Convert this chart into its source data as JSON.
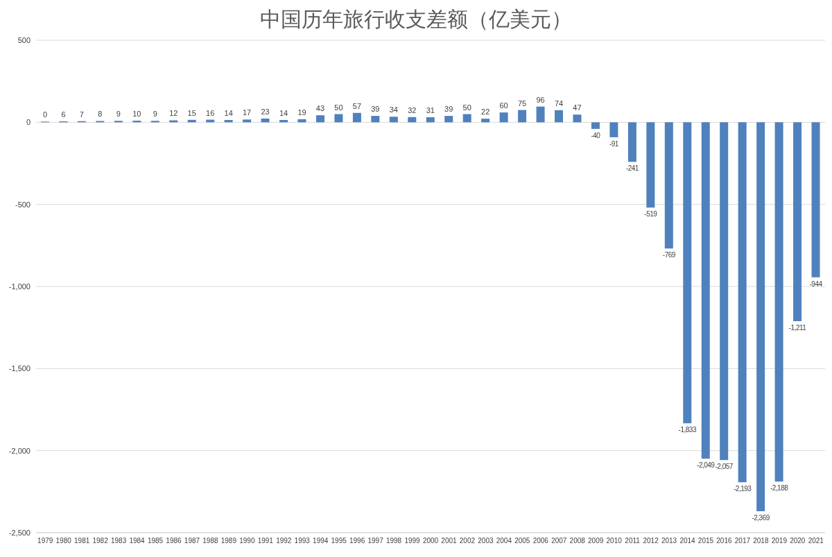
{
  "chart_data": {
    "type": "bar",
    "title": "中国历年旅行收支差额（亿美元）",
    "categories": [
      "1979",
      "1980",
      "1981",
      "1982",
      "1983",
      "1984",
      "1985",
      "1986",
      "1987",
      "1988",
      "1989",
      "1990",
      "1991",
      "1992",
      "1993",
      "1994",
      "1995",
      "1996",
      "1997",
      "1998",
      "1999",
      "2000",
      "2001",
      "2002",
      "2003",
      "2004",
      "2005",
      "2006",
      "2007",
      "2008",
      "2009",
      "2010",
      "2011",
      "2012",
      "2013",
      "2014",
      "2015",
      "2016",
      "2017",
      "2018",
      "2019",
      "2020",
      "2021"
    ],
    "values": [
      0,
      6,
      7,
      8,
      9,
      10,
      9,
      12,
      15,
      16,
      14,
      17,
      23,
      14,
      19,
      43,
      50,
      57,
      39,
      34,
      32,
      31,
      39,
      50,
      22,
      60,
      75,
      96,
      74,
      47,
      -40,
      -91,
      -241,
      -519,
      -769,
      -1833,
      -2049,
      -2057,
      -2193,
      -2369,
      -2188,
      -1211,
      -944
    ],
    "value_labels": [
      "0",
      "6",
      "7",
      "8",
      "9",
      "10",
      "9",
      "12",
      "15",
      "16",
      "14",
      "17",
      "23",
      "14",
      "19",
      "43",
      "50",
      "57",
      "39",
      "34",
      "32",
      "31",
      "39",
      "50",
      "22",
      "60",
      "75",
      "96",
      "74",
      "47",
      "-40",
      "-91",
      "-241",
      "-519",
      "-769",
      "-1,833",
      "-2,049",
      "-2,057",
      "-2,193",
      "-2,369",
      "-2,188",
      "-1,211",
      "-944"
    ],
    "color": "#4f81bd",
    "ylim": [
      -2500,
      500
    ],
    "yticks": [
      {
        "value": -2500,
        "label": "-2,500"
      },
      {
        "value": -2000,
        "label": "-2,000"
      },
      {
        "value": -1500,
        "label": "-1,500"
      },
      {
        "value": -1000,
        "label": "-1,000"
      },
      {
        "value": -500,
        "label": "-500"
      },
      0,
      500
    ],
    "grid": "y"
  }
}
